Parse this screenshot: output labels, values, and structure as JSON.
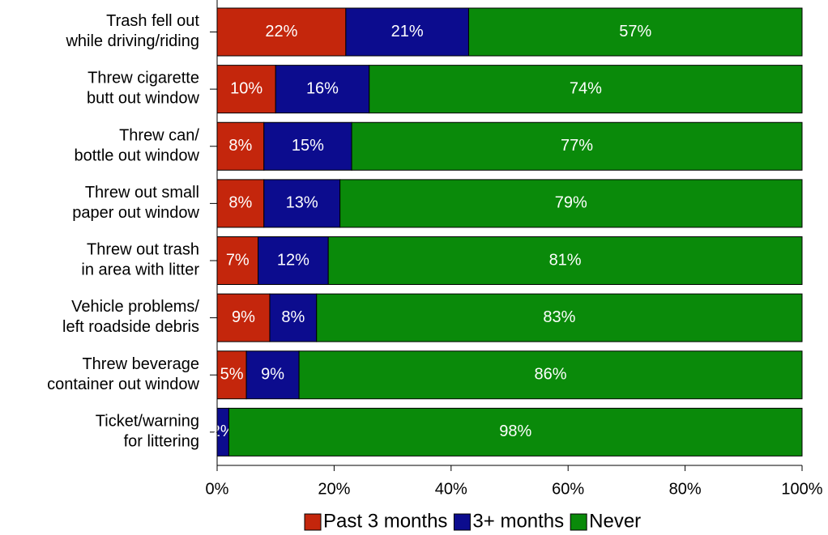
{
  "chart_data": {
    "type": "stacked-bar-horizontal",
    "categories": [
      [
        "Trash fell out",
        "while driving/riding"
      ],
      [
        "Threw cigarette",
        "butt out window"
      ],
      [
        "Threw can/",
        "bottle out window"
      ],
      [
        "Threw out small",
        "paper out window"
      ],
      [
        "Threw out trash",
        "in area with litter"
      ],
      [
        "Vehicle problems/",
        "left roadside debris"
      ],
      [
        "Threw beverage",
        "container out window"
      ],
      [
        "Ticket/warning",
        "for littering"
      ]
    ],
    "series": [
      {
        "name": "Past 3 months",
        "color": "#c4260c",
        "values": [
          22,
          10,
          8,
          8,
          7,
          9,
          5,
          0
        ],
        "value_labels": [
          "22%",
          "10%",
          "8%",
          "8%",
          "7%",
          "9%",
          "5%",
          null
        ]
      },
      {
        "name": "3+ months",
        "color": "#0c0c8e",
        "values": [
          21,
          16,
          15,
          13,
          12,
          8,
          9,
          2
        ],
        "value_labels": [
          "21%",
          "16%",
          "15%",
          "13%",
          "12%",
          "8%",
          "9%",
          "2%"
        ]
      },
      {
        "name": "Never",
        "color": "#0a8a0a",
        "values": [
          57,
          74,
          77,
          79,
          81,
          83,
          86,
          98
        ],
        "value_labels": [
          "57%",
          "74%",
          "77%",
          "79%",
          "81%",
          "83%",
          "86%",
          "98%"
        ]
      }
    ],
    "xlim": [
      0,
      100
    ],
    "xticks": [
      {
        "value": 0,
        "label": "0%"
      },
      {
        "value": 20,
        "label": "20%"
      },
      {
        "value": 40,
        "label": "40%"
      },
      {
        "value": 60,
        "label": "60%"
      },
      {
        "value": 80,
        "label": "80%"
      },
      {
        "value": 100,
        "label": "100%"
      }
    ],
    "legend": "bottom"
  }
}
